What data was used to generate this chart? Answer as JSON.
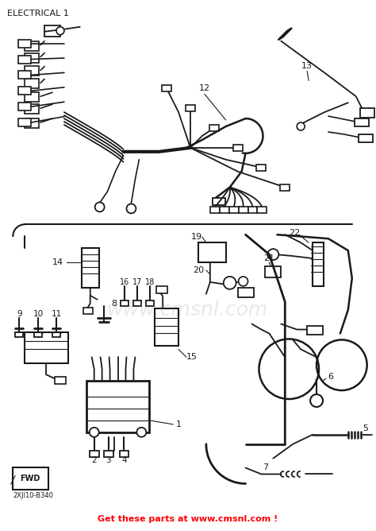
{
  "title": "ELECTRICAL 1",
  "bg_color": "#ffffff",
  "line_color": "#1a1a1a",
  "bottom_text": "Get these parts at www.cmsnl.com !",
  "bottom_text_color": "#ff0000",
  "bottom_code": "2XJI10-B340",
  "fig_width": 4.74,
  "fig_height": 6.68,
  "dpi": 100,
  "watermark": "www.cmsnl.com",
  "watermark_alpha": 0.18
}
